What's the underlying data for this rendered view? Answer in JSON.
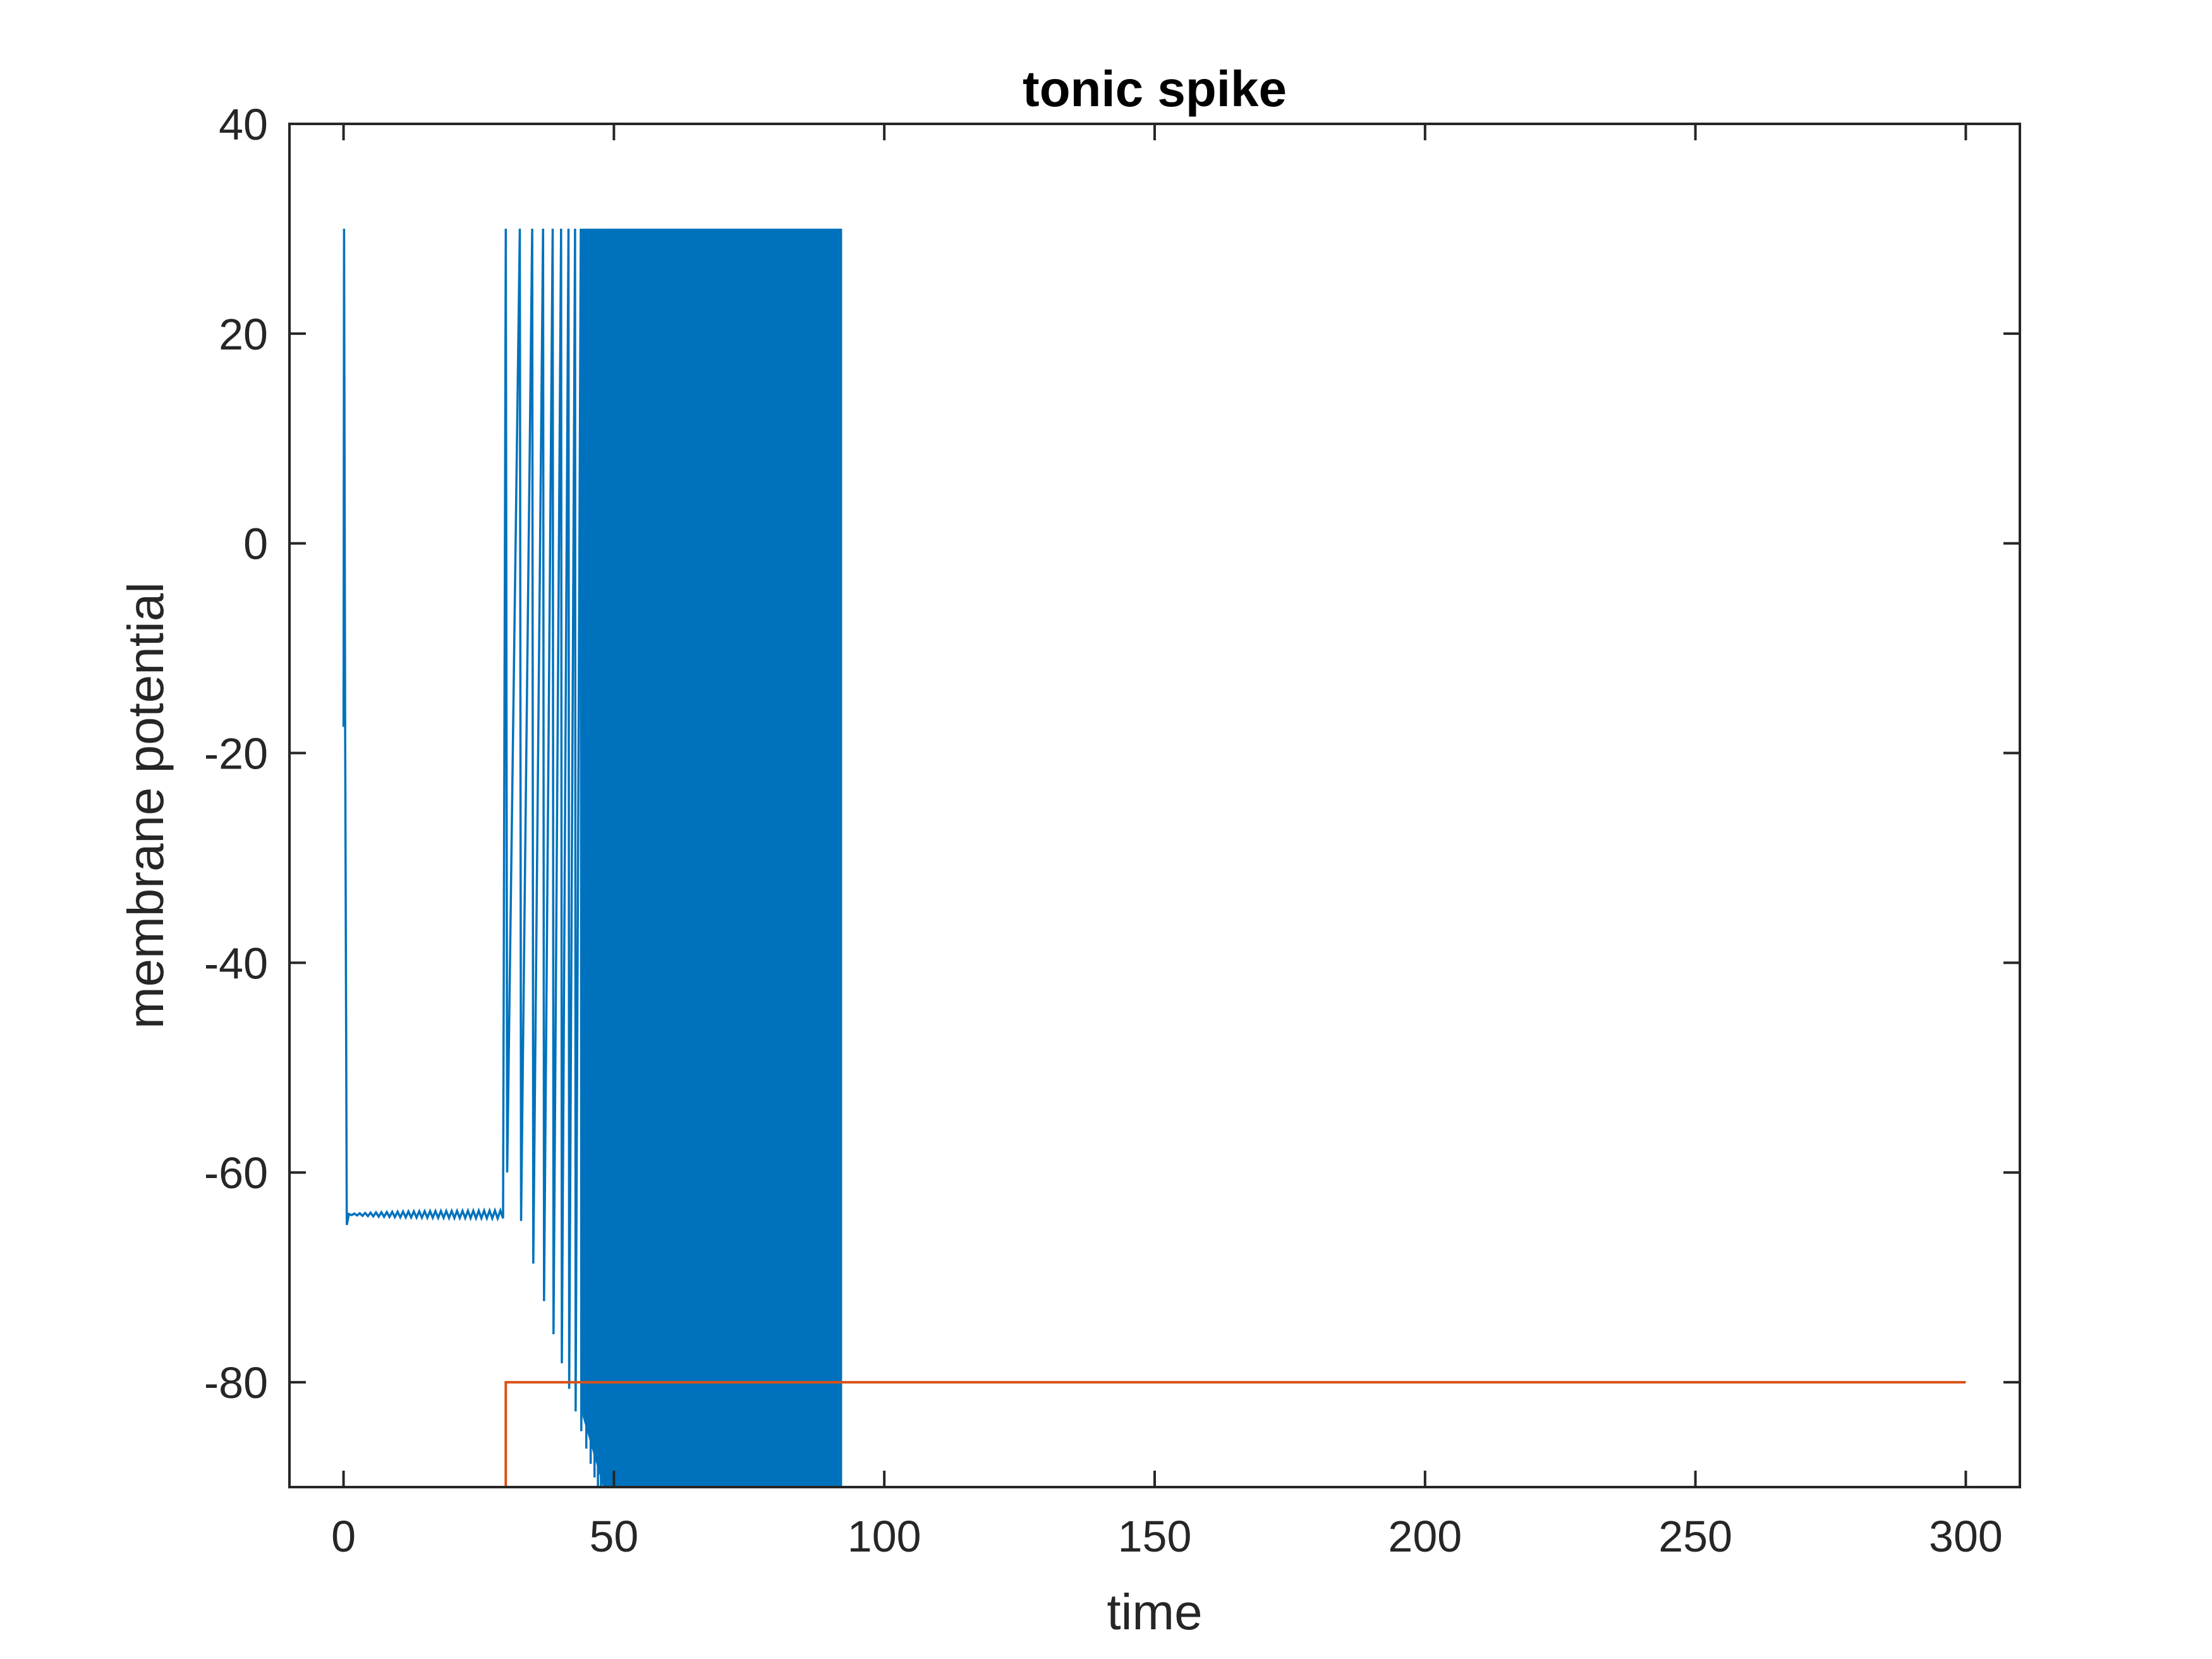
{
  "chart_data": {
    "type": "line",
    "title": "tonic spike",
    "xlabel": "time",
    "ylabel": "membrane potential",
    "xlim": [
      -10,
      310
    ],
    "ylim": [
      -90,
      40
    ],
    "xticks": [
      0,
      50,
      100,
      150,
      200,
      250,
      300
    ],
    "yticks": [
      -80,
      -60,
      -40,
      -20,
      0,
      20,
      40
    ],
    "grid": false,
    "box": true,
    "series": [
      {
        "color": "#0072BD",
        "description_points": {
          "initial_spike": {
            "x": 0.1,
            "peak": 30,
            "start": -17.5
          },
          "rest_segment": {
            "x": [
              1,
              30
            ],
            "min": -65,
            "max": -61,
            "settle": -64
          },
          "spiking_segment": {
            "x": [
              30,
              92
            ],
            "peak": 30,
            "trough_start": -58,
            "trough_end": -90
          },
          "end_time": 92
        }
      },
      {
        "color": "#D95319",
        "x": [
          0,
          30,
          30,
          300
        ],
        "y": [
          -90,
          -90,
          -80,
          -80
        ]
      }
    ]
  }
}
